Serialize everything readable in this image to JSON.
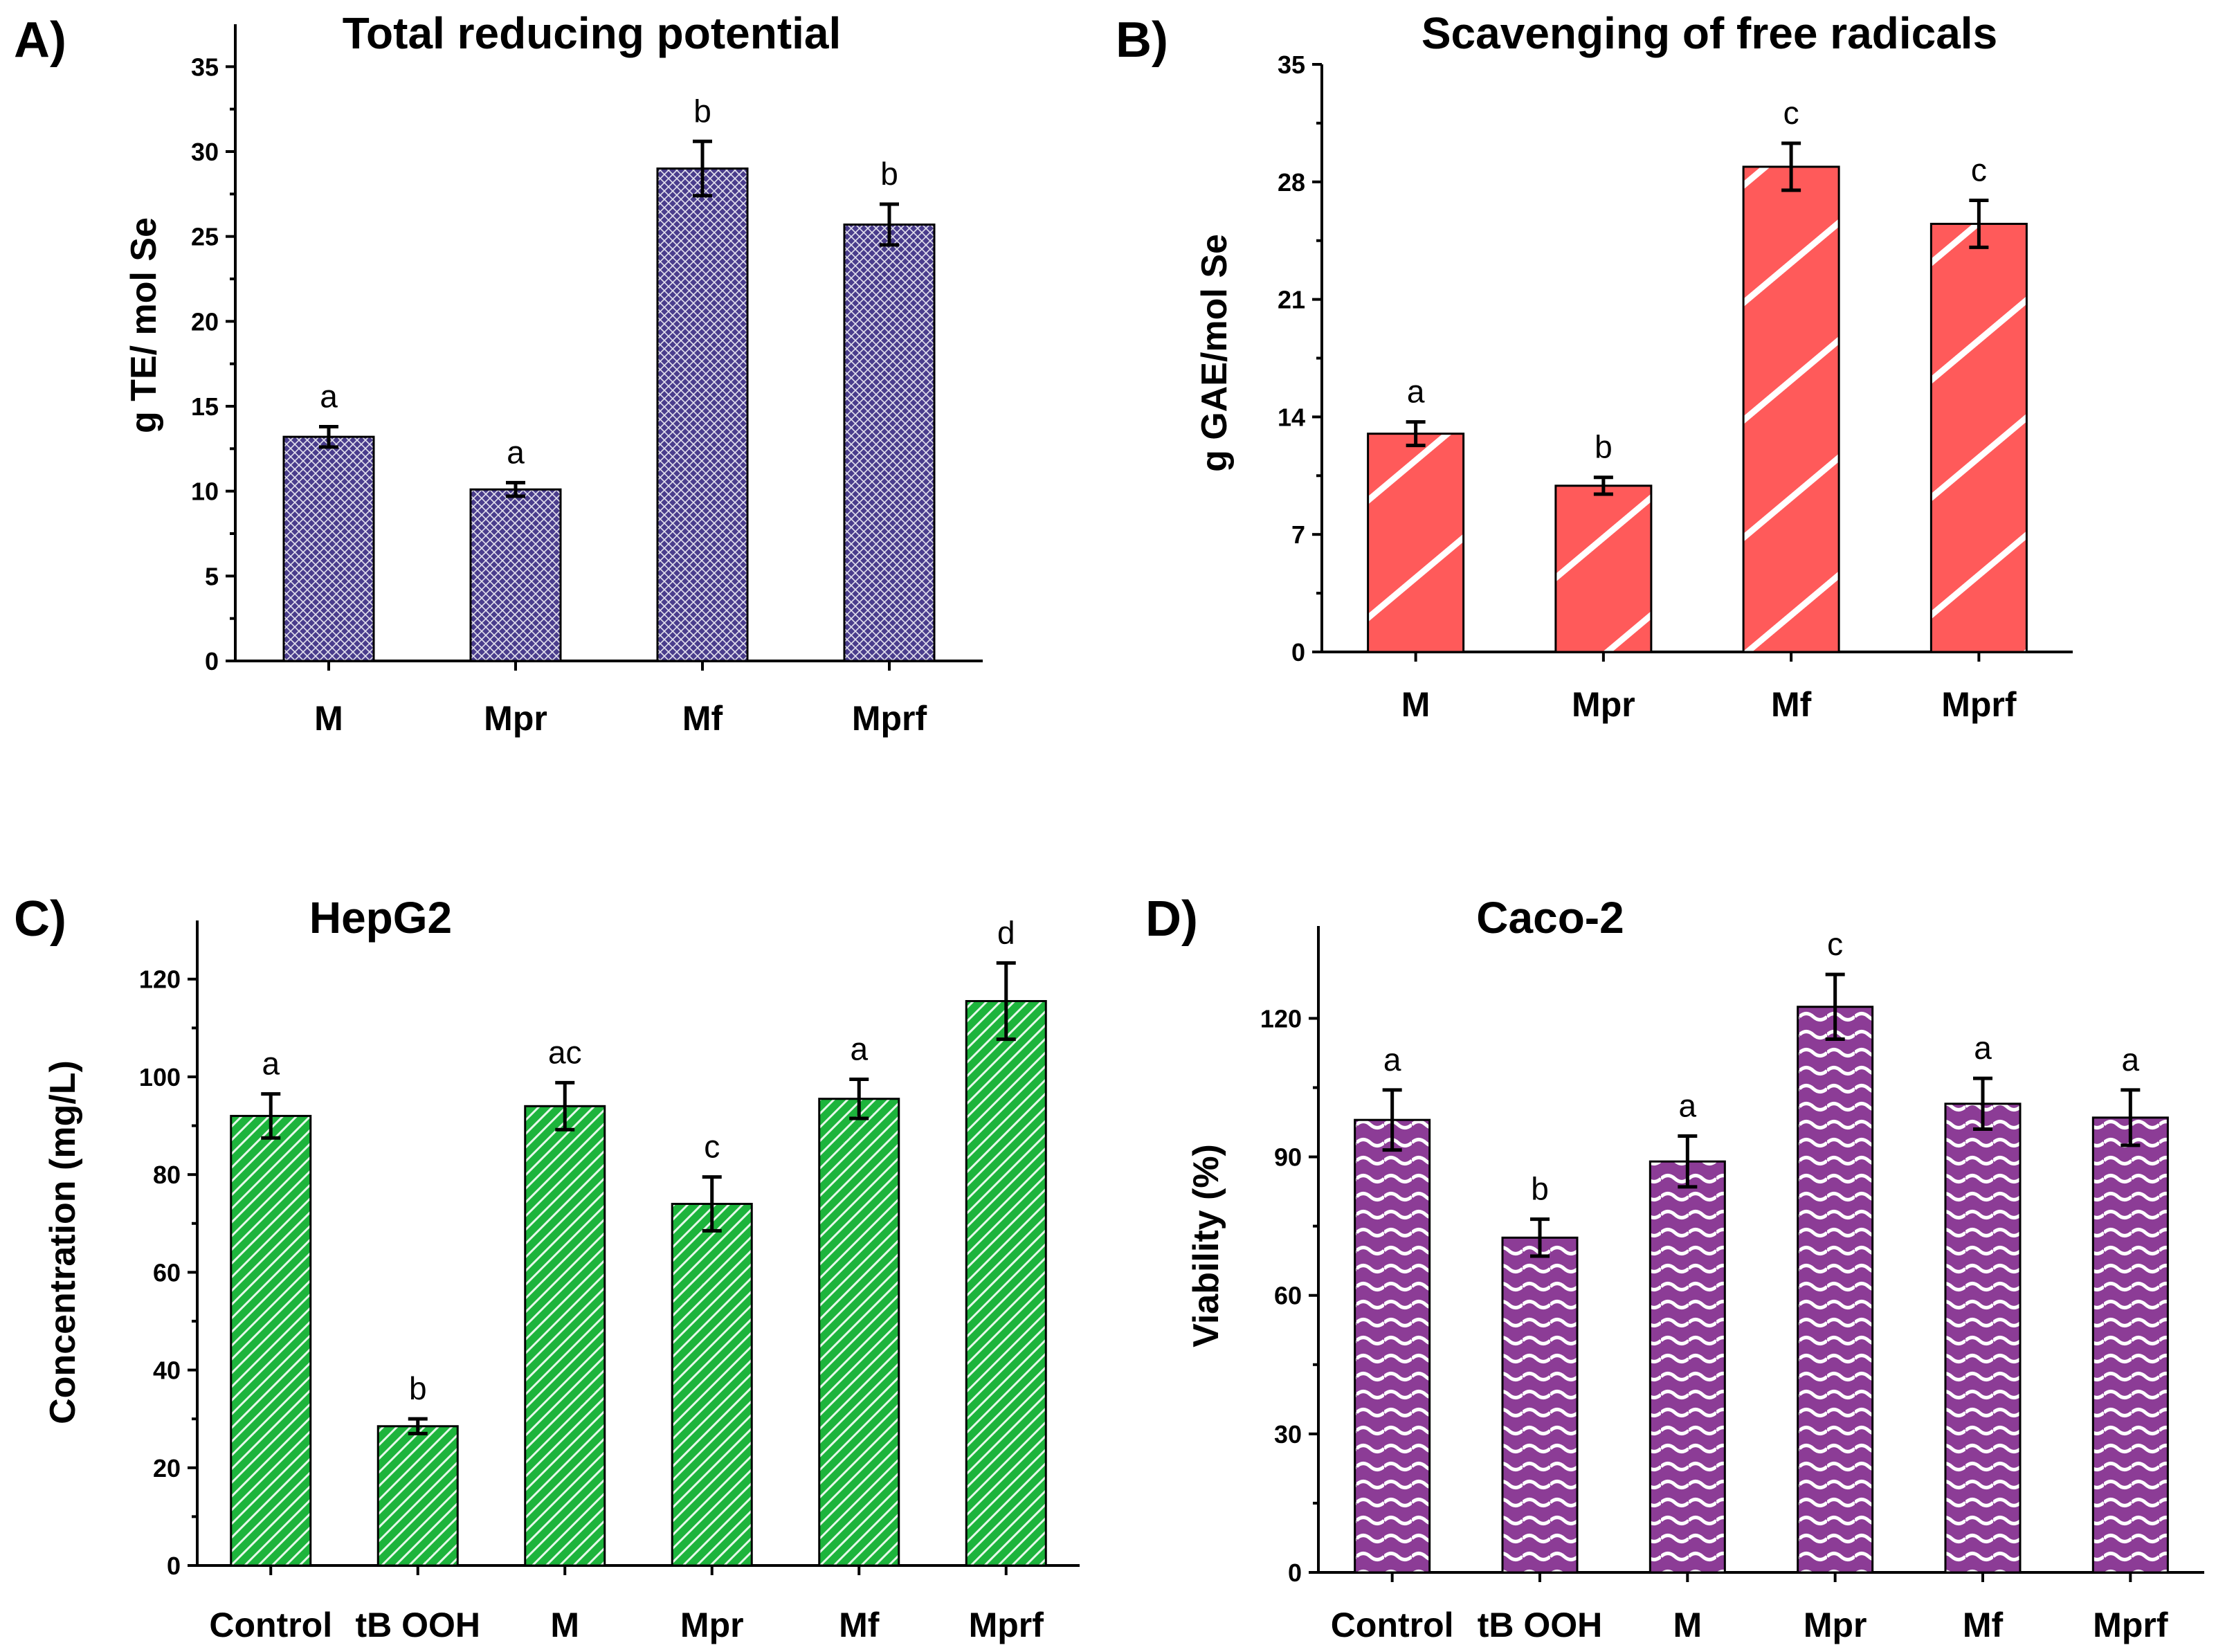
{
  "chart_data": [
    {
      "type": "bar",
      "panel": "A)",
      "title": "Total reducing potential",
      "xlabel": "",
      "ylabel": "g TE/ mol Se",
      "categories": [
        "M",
        "Mpr",
        "Mf",
        "Mprf"
      ],
      "values": [
        13.2,
        10.1,
        29.0,
        25.7
      ],
      "errors": [
        0.6,
        0.4,
        1.6,
        1.2
      ],
      "significance": [
        "a",
        "a",
        "b",
        "b"
      ],
      "ylim": [
        0,
        37.5
      ],
      "yticks": [
        0,
        5,
        10,
        15,
        20,
        25,
        30,
        35
      ],
      "fill": "#4a3d8c",
      "pattern": "crosshatch"
    },
    {
      "type": "bar",
      "panel": "B)",
      "title": "Scavenging of free radicals",
      "xlabel": "",
      "ylabel": "g GAE/mol Se",
      "categories": [
        "M",
        "Mpr",
        "Mf",
        "Mprf"
      ],
      "values": [
        13.0,
        9.9,
        28.9,
        25.5
      ],
      "errors": [
        0.7,
        0.5,
        1.4,
        1.4
      ],
      "significance": [
        "a",
        "b",
        "c",
        "c"
      ],
      "ylim": [
        0,
        35
      ],
      "yticks": [
        0,
        7,
        14,
        21,
        28,
        35
      ],
      "fill": "#ff5a5a",
      "pattern": "diagonal-white"
    },
    {
      "type": "bar",
      "panel": "C)",
      "title": "HepG2",
      "xlabel": "",
      "ylabel": "Concentration (mg/L)",
      "categories": [
        "Control",
        "tB OOH",
        "M",
        "Mpr",
        "Mf",
        "Mprf"
      ],
      "values": [
        92,
        28.5,
        94,
        74,
        95.5,
        115.5
      ],
      "errors": [
        4.5,
        1.5,
        4.8,
        5.5,
        4.0,
        7.8
      ],
      "significance": [
        "a",
        "b",
        "ac",
        "c",
        "a",
        "d"
      ],
      "ylim": [
        0,
        132
      ],
      "yticks": [
        0,
        20,
        40,
        60,
        80,
        100,
        120
      ],
      "fill": "#1db43c",
      "pattern": "fine-diagonal"
    },
    {
      "type": "bar",
      "panel": "D)",
      "title": "Caco-2",
      "xlabel": "",
      "ylabel": "Viability (%)",
      "categories": [
        "Control",
        "tB OOH",
        "M",
        "Mpr",
        "Mf",
        "Mprf"
      ],
      "values": [
        98,
        72.5,
        89,
        122.5,
        101.5,
        98.5
      ],
      "errors": [
        6.5,
        4.0,
        5.5,
        7.0,
        5.5,
        6.0
      ],
      "significance": [
        "a",
        "b",
        "a",
        "c",
        "a",
        "a"
      ],
      "ylim": [
        0,
        140
      ],
      "yticks": [
        0,
        30,
        60,
        90,
        120
      ],
      "fill": "#8c3c96",
      "pattern": "wavy"
    }
  ]
}
